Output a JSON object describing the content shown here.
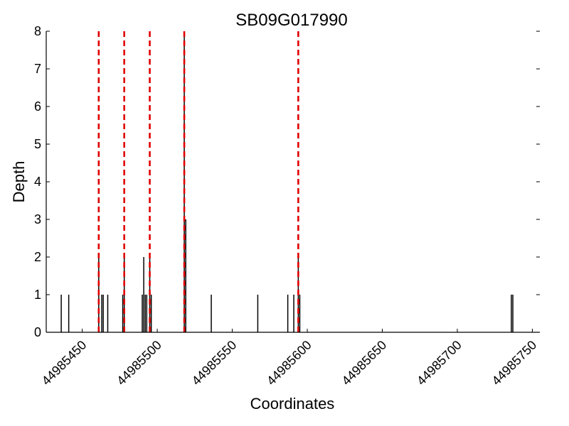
{
  "chart_data": {
    "type": "bar",
    "title": "SB09G017990",
    "xlabel": "Coordinates",
    "ylabel": "Depth",
    "xlim": [
      44985426,
      44985755
    ],
    "ylim": [
      0,
      8
    ],
    "x_ticks": [
      44985450,
      44985500,
      44985550,
      44985600,
      44985650,
      44985700,
      44985750
    ],
    "y_ticks": [
      0,
      1,
      2,
      3,
      4,
      5,
      6,
      7,
      8
    ],
    "grid": false,
    "bar_color": "#000000",
    "marker_color": "#e00000",
    "bars": [
      {
        "x": 44985436,
        "y": 1
      },
      {
        "x": 44985441,
        "y": 1
      },
      {
        "x": 44985461,
        "y": 2
      },
      {
        "x": 44985463,
        "y": 1
      },
      {
        "x": 44985464,
        "y": 1
      },
      {
        "x": 44985467,
        "y": 1
      },
      {
        "x": 44985477,
        "y": 1
      },
      {
        "x": 44985478,
        "y": 2
      },
      {
        "x": 44985490,
        "y": 1
      },
      {
        "x": 44985491,
        "y": 2
      },
      {
        "x": 44985492,
        "y": 1
      },
      {
        "x": 44985493,
        "y": 1
      },
      {
        "x": 44985495,
        "y": 2
      },
      {
        "x": 44985496,
        "y": 1
      },
      {
        "x": 44985518,
        "y": 8
      },
      {
        "x": 44985519,
        "y": 3
      },
      {
        "x": 44985536,
        "y": 1
      },
      {
        "x": 44985567,
        "y": 1
      },
      {
        "x": 44985587,
        "y": 1
      },
      {
        "x": 44985591,
        "y": 1
      },
      {
        "x": 44985594,
        "y": 2
      },
      {
        "x": 44985595,
        "y": 1
      },
      {
        "x": 44985736,
        "y": 1
      },
      {
        "x": 44985737,
        "y": 1
      }
    ],
    "markers": [
      44985461,
      44985478,
      44985495,
      44985518,
      44985594
    ]
  }
}
